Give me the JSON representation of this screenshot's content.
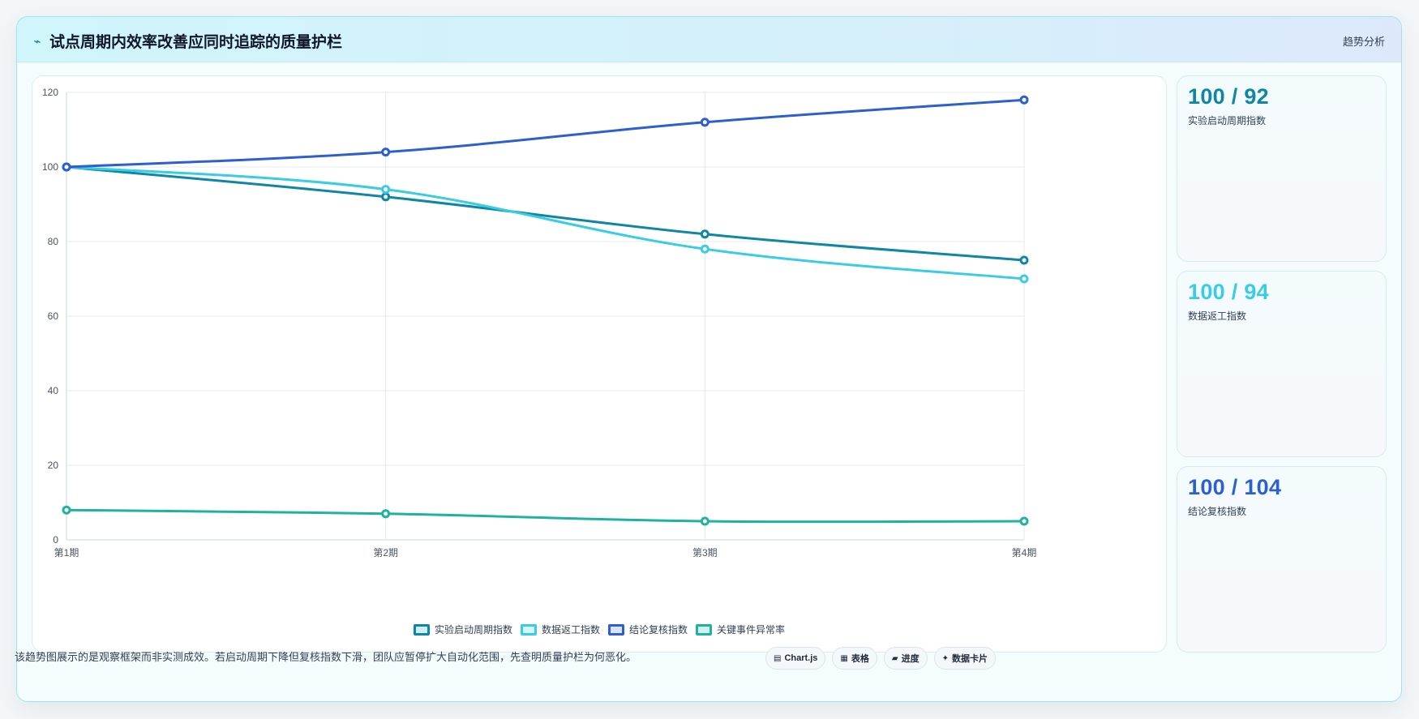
{
  "header": {
    "title": "试点周期内效率改善应同时追踪的质量护栏",
    "icon": "pulse-icon",
    "tag": "趋势分析"
  },
  "chart_data": {
    "type": "line",
    "categories": [
      "第1期",
      "第2期",
      "第3期",
      "第4期"
    ],
    "ylim": [
      0,
      120
    ],
    "yticks": [
      0,
      20,
      40,
      60,
      80,
      100,
      120
    ],
    "grid": true,
    "legend": "bottom",
    "series": [
      {
        "name": "实验启动周期指数",
        "color": "#0e86a4",
        "values": [
          100,
          92,
          82,
          75
        ]
      },
      {
        "name": "数据返工指数",
        "color": "#38cde3",
        "values": [
          100,
          94,
          78,
          70
        ]
      },
      {
        "name": "结论复核指数",
        "color": "#2d5fcf",
        "values": [
          100,
          104,
          112,
          118
        ]
      },
      {
        "name": "关键事件异常率",
        "color": "#1fb2a0",
        "values": [
          8,
          7,
          5,
          5
        ]
      }
    ]
  },
  "stats": [
    {
      "value": "100 / 92",
      "label": "实验启动周期指数",
      "color": "#0e86a4"
    },
    {
      "value": "100 / 94",
      "label": "数据返工指数",
      "color": "#38cde3"
    },
    {
      "value": "100 / 104",
      "label": "结论复核指数",
      "color": "#2d5fcf"
    }
  ],
  "footer": {
    "note": "该趋势图展示的是观察框架而非实测成效。若启动周期下降但复核指数下滑，团队应暂停扩大自动化范围，先查明质量护栏为何恶化。",
    "chips": [
      {
        "icon": "chart-icon",
        "glyph": "▤",
        "label": "Chart.js"
      },
      {
        "icon": "table-icon",
        "glyph": "▦",
        "label": "表格"
      },
      {
        "icon": "progress-icon",
        "glyph": "▰",
        "label": "进度"
      },
      {
        "icon": "sparkle-icon",
        "glyph": "✦",
        "label": "数据卡片"
      }
    ]
  }
}
